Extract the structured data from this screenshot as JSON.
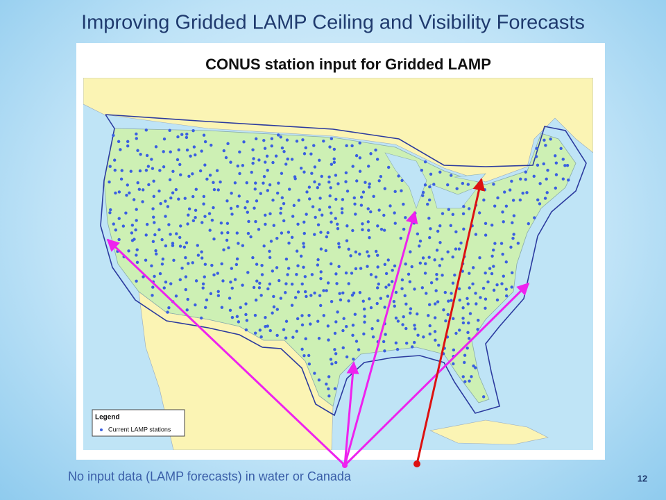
{
  "slide": {
    "title": "Improving Gridded LAMP Ceiling and Visibility Forecasts",
    "map_title": "CONUS station input for Gridded LAMP",
    "legend": {
      "title": "Legend",
      "entry": "Current LAMP stations"
    },
    "caption": "No input data (LAMP forecasts) in water or Canada",
    "page_number": "12"
  }
}
